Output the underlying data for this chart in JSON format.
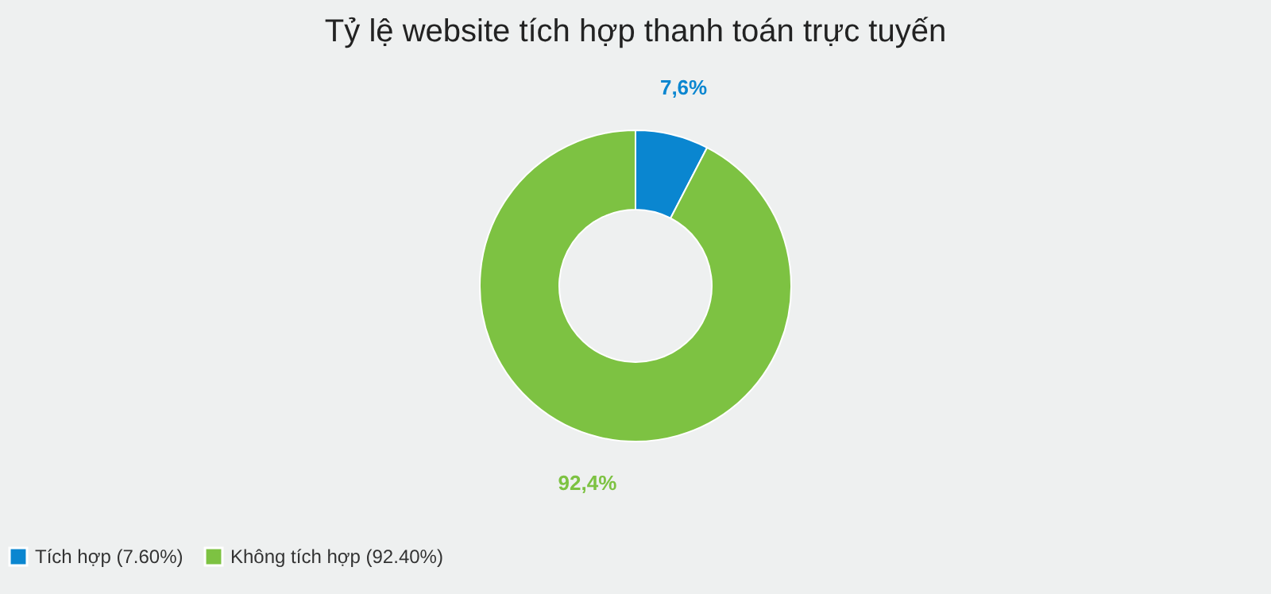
{
  "chart_data": {
    "type": "donut",
    "title": "Tỷ lệ website tích hợp thanh toán trực tuyến",
    "categories": [
      "Tích hợp (7.60%)",
      "Không tích hợp (92.40%)"
    ],
    "values": [
      7.6,
      92.4
    ],
    "colors": [
      "#0a86d0",
      "#7dc242"
    ],
    "value_labels": [
      "7,6%",
      "92,4%"
    ],
    "legend": "bottom"
  }
}
